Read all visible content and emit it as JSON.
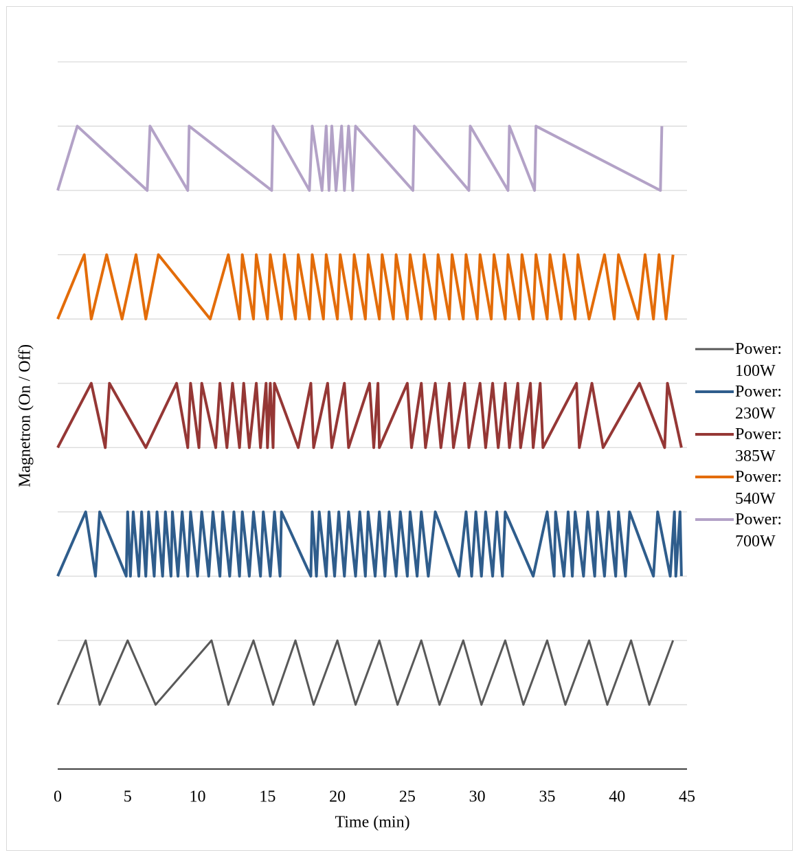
{
  "chart_data": {
    "type": "line",
    "x_label": "Time (min)",
    "y_label": "Magnetron (On / Off)",
    "xlim": [
      0,
      45
    ],
    "xticks": [
      0,
      5,
      10,
      15,
      20,
      25,
      30,
      35,
      40,
      45
    ],
    "ylim": [
      0,
      11
    ],
    "yticks": [
      1,
      2,
      3,
      4,
      5,
      6,
      7,
      8,
      9,
      10,
      11
    ],
    "grid": true,
    "legend": "right",
    "series": [
      {
        "name": "Power: 100W",
        "color": "#595959",
        "x": [
          0,
          2.0,
          3.0,
          5.0,
          7.0,
          11.0,
          12.2,
          14.0,
          15.4,
          17.0,
          18.3,
          20.0,
          21.3,
          23.0,
          24.3,
          26.0,
          27.3,
          29.0,
          30.3,
          32.0,
          33.3,
          35.0,
          36.3,
          38.0,
          39.3,
          41.0,
          42.3,
          44.0
        ],
        "values": [
          1,
          2,
          1,
          2,
          1,
          2,
          1,
          2,
          1,
          2,
          1,
          2,
          1,
          2,
          1,
          2,
          1,
          2,
          1,
          2,
          1,
          2,
          1,
          2,
          1,
          2,
          1,
          2
        ]
      },
      {
        "name": "Power: 230W",
        "color": "#2f5d8c",
        "x": [
          0,
          2.0,
          2.7,
          3.0,
          4.9,
          5.0,
          5.2,
          5.4,
          5.8,
          6.0,
          6.3,
          6.5,
          6.9,
          7.1,
          7.5,
          7.7,
          8.1,
          8.2,
          8.6,
          8.9,
          9.3,
          9.5,
          10.0,
          10.3,
          10.8,
          11.1,
          11.6,
          11.8,
          12.3,
          12.6,
          13.0,
          13.2,
          13.7,
          14.0,
          14.5,
          14.7,
          15.2,
          15.5,
          15.9,
          16.0,
          18.1,
          18.2,
          18.5,
          18.7,
          19.2,
          19.4,
          19.8,
          20.1,
          20.5,
          20.8,
          21.3,
          21.6,
          22.0,
          22.2,
          22.7,
          23.0,
          23.4,
          23.7,
          24.2,
          24.5,
          25.0,
          25.2,
          25.7,
          26.0,
          26.5,
          27.0,
          28.7,
          29.2,
          29.6,
          29.9,
          30.3,
          30.6,
          31.1,
          31.4,
          31.8,
          32.0,
          34.0,
          35.0,
          35.5,
          35.6,
          36.2,
          36.5,
          36.8,
          37.0,
          37.6,
          37.9,
          38.4,
          38.6,
          39.1,
          39.4,
          39.9,
          40.1,
          40.6,
          40.9,
          42.6,
          42.9,
          43.8,
          44.1,
          44.2,
          44.5,
          44.6
        ],
        "values": [
          3,
          4,
          3,
          4,
          3,
          4,
          3,
          4,
          3,
          4,
          3,
          4,
          3,
          4,
          3,
          4,
          3,
          4,
          3,
          4,
          3,
          4,
          3,
          4,
          3,
          4,
          3,
          4,
          3,
          4,
          3,
          4,
          3,
          4,
          3,
          4,
          3,
          4,
          3,
          4,
          3,
          4,
          3,
          4,
          3,
          4,
          3,
          4,
          3,
          4,
          3,
          4,
          3,
          4,
          3,
          4,
          3,
          4,
          3,
          4,
          3,
          4,
          3,
          4,
          3,
          4,
          3,
          4,
          3,
          4,
          3,
          4,
          3,
          4,
          3,
          4,
          3,
          4,
          3,
          4,
          3,
          4,
          3,
          4,
          3,
          4,
          3,
          4,
          3,
          4,
          3,
          4,
          3,
          4,
          3,
          4,
          3,
          4,
          3,
          4,
          3
        ]
      },
      {
        "name": "Power: 385W",
        "color": "#953735",
        "x": [
          0,
          2.4,
          3.4,
          3.7,
          6.3,
          8.5,
          9.3,
          9.5,
          10.1,
          10.3,
          11.3,
          11.6,
          12.1,
          12.5,
          13.0,
          13.3,
          13.7,
          14.2,
          14.5,
          14.9,
          15.0,
          15.2,
          15.4,
          15.5,
          17.2,
          18.1,
          18.3,
          19.3,
          19.6,
          20.5,
          20.8,
          22.3,
          22.6,
          22.9,
          23.0,
          25.0,
          25.3,
          26.0,
          26.3,
          27.0,
          27.4,
          28.0,
          28.3,
          29.1,
          29.4,
          30.2,
          30.6,
          31.1,
          31.5,
          32.0,
          32.3,
          32.9,
          33.1,
          33.8,
          34.0,
          34.5,
          34.7,
          37.1,
          37.3,
          38.2,
          39.0,
          41.6,
          43.4,
          43.6,
          44.6
        ],
        "values": [
          5,
          6,
          5,
          6,
          5,
          6,
          5,
          6,
          5,
          6,
          5,
          6,
          5,
          6,
          5,
          6,
          5,
          6,
          5,
          6,
          5,
          6,
          5,
          6,
          5,
          6,
          5,
          6,
          5,
          6,
          5,
          6,
          5,
          6,
          5,
          6,
          5,
          6,
          5,
          6,
          5,
          6,
          5,
          6,
          5,
          6,
          5,
          6,
          5,
          6,
          5,
          6,
          5,
          6,
          5,
          6,
          5,
          6,
          5,
          6,
          5,
          6,
          5,
          6,
          5
        ]
      },
      {
        "name": "Power: 540W",
        "color": "#e36c09",
        "x": [
          0,
          1.9,
          2.4,
          3.5,
          4.6,
          5.6,
          6.3,
          7.2,
          10.9,
          12.2,
          13.0,
          13.2,
          14.0,
          14.2,
          15.0,
          15.2,
          16.0,
          16.2,
          17.0,
          17.2,
          18.0,
          18.2,
          19.0,
          19.2,
          20.0,
          20.2,
          21.0,
          21.2,
          22.0,
          22.2,
          23.0,
          23.2,
          24.0,
          24.2,
          25.0,
          25.2,
          26.0,
          26.2,
          27.0,
          27.2,
          28.0,
          28.2,
          29.0,
          29.2,
          30.0,
          30.2,
          31.0,
          31.2,
          32.0,
          32.2,
          33.0,
          33.2,
          34.0,
          34.2,
          35.0,
          35.2,
          36.0,
          36.2,
          37.0,
          37.2,
          38.0,
          39.1,
          39.8,
          40.1,
          41.5,
          42.0,
          42.6,
          43.0,
          43.5,
          44.0
        ],
        "values": [
          7,
          8,
          7,
          8,
          7,
          8,
          7,
          8,
          7,
          8,
          7,
          8,
          7,
          8,
          7,
          8,
          7,
          8,
          7,
          8,
          7,
          8,
          7,
          8,
          7,
          8,
          7,
          8,
          7,
          8,
          7,
          8,
          7,
          8,
          7,
          8,
          7,
          8,
          7,
          8,
          7,
          8,
          7,
          8,
          7,
          8,
          7,
          8,
          7,
          8,
          7,
          8,
          7,
          8,
          7,
          8,
          7,
          8,
          7,
          8,
          7,
          8,
          7,
          8,
          7,
          8,
          7,
          8,
          7,
          8
        ]
      },
      {
        "name": "Power: 700W",
        "color": "#b3a2c7",
        "x": [
          0,
          1.4,
          6.4,
          6.6,
          9.3,
          9.4,
          15.3,
          15.4,
          18.0,
          18.2,
          18.9,
          19.2,
          19.4,
          19.6,
          19.9,
          20.3,
          20.5,
          20.8,
          21.1,
          21.3,
          25.4,
          25.5,
          29.4,
          29.5,
          32.2,
          32.3,
          34.1,
          34.2,
          43.1,
          43.2
        ],
        "values": [
          9,
          10,
          9,
          10,
          9,
          10,
          9,
          10,
          9,
          10,
          9,
          10,
          9,
          10,
          9,
          10,
          9,
          10,
          9,
          10,
          9,
          10,
          9,
          10,
          9,
          10,
          9,
          10,
          9,
          10
        ]
      }
    ]
  }
}
